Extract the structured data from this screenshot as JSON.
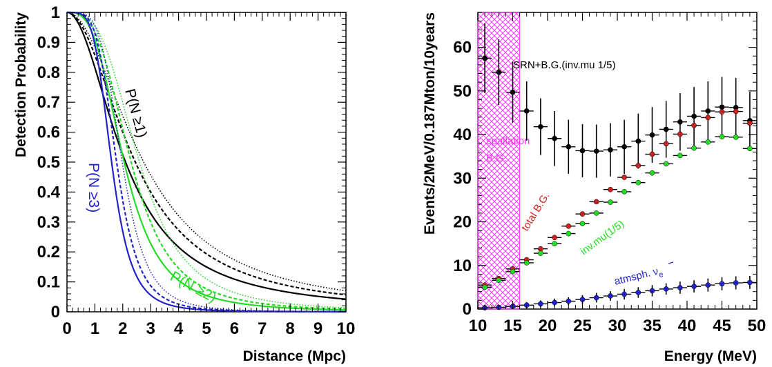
{
  "chart_data": [
    {
      "type": "line",
      "xlabel": "Distance (Mpc)",
      "ylabel": "Detection Probability",
      "xlim": [
        0,
        10
      ],
      "ylim": [
        0,
        1
      ],
      "xticks": [
        "0",
        "1",
        "2",
        "3",
        "4",
        "5",
        "6",
        "7",
        "8",
        "9",
        "10"
      ],
      "yticks": [
        "0",
        "0.1",
        "0.2",
        "0.3",
        "0.4",
        "0.5",
        "0.6",
        "0.7",
        "0.8",
        "0.9",
        "1"
      ],
      "grid": false,
      "annotations": [
        {
          "text": "P(N ≥1)",
          "color": "#000000"
        },
        {
          "text": "P(N ≥2)",
          "color": "#22dd22"
        },
        {
          "text": "P(N ≥3)",
          "color": "#2222cc"
        }
      ],
      "series": [
        {
          "color": "#000000",
          "style": "solid",
          "d0": 2.1,
          "p": 2.0,
          "x": [
            0,
            0.5,
            1,
            1.5,
            2,
            2.5,
            3,
            3.5,
            4,
            4.5,
            5,
            5.5,
            6,
            7,
            8,
            9,
            10
          ],
          "y": [
            1,
            1,
            0.99,
            0.86,
            0.66,
            0.48,
            0.35,
            0.26,
            0.2,
            0.16,
            0.13,
            0.11,
            0.09,
            0.07,
            0.06,
            0.05,
            0.04
          ]
        },
        {
          "color": "#000000",
          "style": "dashed",
          "d0": 2.45,
          "p": 2.0,
          "x": [
            0,
            0.5,
            1,
            1.5,
            2,
            2.5,
            3,
            3.5,
            4,
            4.5,
            5,
            5.5,
            6,
            7,
            8,
            9,
            10
          ],
          "y": [
            1,
            1,
            0.99,
            0.9,
            0.73,
            0.55,
            0.42,
            0.32,
            0.25,
            0.2,
            0.16,
            0.14,
            0.12,
            0.09,
            0.07,
            0.06,
            0.05
          ]
        },
        {
          "color": "#000000",
          "style": "dotted",
          "d0": 2.75,
          "p": 2.0,
          "x": [
            0,
            0.5,
            1,
            1.5,
            2,
            2.5,
            3,
            3.5,
            4,
            4.5,
            5,
            5.5,
            6,
            7,
            8,
            9,
            10
          ],
          "y": [
            1,
            1,
            0.99,
            0.92,
            0.79,
            0.62,
            0.48,
            0.38,
            0.3,
            0.24,
            0.2,
            0.17,
            0.14,
            0.11,
            0.09,
            0.07,
            0.06
          ]
        },
        {
          "color": "#22dd22",
          "style": "solid",
          "d0": 2.05,
          "p": 3.2,
          "x": [
            0,
            0.5,
            1,
            1.5,
            2,
            2.5,
            3,
            3.5,
            4,
            4.5,
            5,
            5.5,
            6,
            7,
            8,
            9,
            10
          ],
          "y": [
            1,
            1,
            0.99,
            0.73,
            0.46,
            0.27,
            0.16,
            0.1,
            0.07,
            0.05,
            0.03,
            0.02,
            0.02,
            0.01,
            0.01,
            0,
            0
          ]
        },
        {
          "color": "#22dd22",
          "style": "dashed",
          "d0": 2.3,
          "p": 3.2,
          "x": [
            0,
            0.5,
            1,
            1.5,
            2,
            2.5,
            3,
            3.5,
            4,
            4.5,
            5,
            5.5,
            6,
            7,
            8,
            9,
            10
          ],
          "y": [
            1,
            1,
            0.99,
            0.8,
            0.55,
            0.35,
            0.22,
            0.14,
            0.09,
            0.06,
            0.04,
            0.03,
            0.02,
            0.01,
            0.01,
            0.01,
            0
          ]
        },
        {
          "color": "#22dd22",
          "style": "dotted",
          "d0": 2.6,
          "p": 3.2,
          "x": [
            0,
            0.5,
            1,
            1.5,
            2,
            2.5,
            3,
            3.5,
            4,
            4.5,
            5,
            5.5,
            6,
            7,
            8,
            9,
            10
          ],
          "y": [
            1,
            1,
            0.99,
            0.86,
            0.65,
            0.45,
            0.3,
            0.2,
            0.13,
            0.09,
            0.06,
            0.04,
            0.03,
            0.02,
            0.01,
            0.01,
            0.01
          ]
        },
        {
          "color": "#2222cc",
          "style": "solid",
          "d0": 1.6,
          "p": 4.5,
          "x": [
            0,
            0.5,
            1,
            1.5,
            2,
            2.5,
            3,
            3.5,
            4,
            4.5,
            5,
            5.5,
            6,
            7,
            8,
            9,
            10
          ],
          "y": [
            1,
            1,
            0.9,
            0.56,
            0.2,
            0.06,
            0.02,
            0.01,
            0,
            0,
            0,
            0,
            0,
            0,
            0,
            0,
            0
          ]
        },
        {
          "color": "#2222cc",
          "style": "dashed",
          "d0": 1.78,
          "p": 4.5,
          "x": [
            0,
            0.5,
            1,
            1.5,
            2,
            2.5,
            3,
            3.5,
            4,
            4.5,
            5,
            5.5,
            6,
            7,
            8,
            9,
            10
          ],
          "y": [
            1,
            1,
            0.93,
            0.68,
            0.29,
            0.11,
            0.04,
            0.02,
            0.01,
            0,
            0,
            0,
            0,
            0,
            0,
            0,
            0
          ]
        },
        {
          "color": "#2222cc",
          "style": "dotted",
          "d0": 1.98,
          "p": 4.5,
          "x": [
            0,
            0.5,
            1,
            1.5,
            2,
            2.5,
            3,
            3.5,
            4,
            4.5,
            5,
            5.5,
            6,
            7,
            8,
            9,
            10
          ],
          "y": [
            1,
            1,
            0.96,
            0.78,
            0.42,
            0.18,
            0.07,
            0.03,
            0.01,
            0.01,
            0,
            0,
            0,
            0,
            0,
            0,
            0
          ]
        }
      ]
    },
    {
      "type": "scatter",
      "xlabel": "Energy (MeV)",
      "ylabel": "Events/2MeV/0.187Mton/10years",
      "xlim": [
        10,
        50
      ],
      "ylim": [
        0,
        68
      ],
      "xticks": [
        "10",
        "15",
        "20",
        "25",
        "30",
        "35",
        "40",
        "45",
        "50"
      ],
      "yticks": [
        "0",
        "10",
        "20",
        "30",
        "40",
        "50",
        "60"
      ],
      "grid": false,
      "shaded_region": {
        "x": [
          10,
          16
        ],
        "color": "#ff33ff",
        "label_line1": "spallation",
        "label_line2": "B.G."
      },
      "annotations": [
        {
          "text": "SRN+B.G.(inv.mu 1/5)",
          "color": "#000000"
        },
        {
          "text": "total B.G.",
          "color": "#dd2222"
        },
        {
          "text": "inv.mu(1/5)",
          "color": "#22dd22"
        },
        {
          "text": "atmsph. ν",
          "color": "#2222cc",
          "subscript": "e"
        }
      ],
      "x": [
        11,
        13,
        15,
        17,
        19,
        21,
        23,
        25,
        27,
        29,
        31,
        33,
        35,
        37,
        39,
        41,
        43,
        45,
        47,
        49
      ],
      "series": [
        {
          "color": "#000000",
          "values": [
            57.5,
            54.3,
            49.7,
            45.4,
            41.8,
            39.1,
            37.2,
            36.3,
            36.2,
            36.5,
            37.2,
            38.5,
            39.9,
            41.2,
            42.9,
            44.2,
            45.4,
            46.3,
            46.2,
            43.2
          ],
          "errors": [
            8.0,
            7.5,
            7.0,
            6.8,
            6.5,
            6.3,
            6.2,
            6.1,
            6.1,
            6.1,
            6.2,
            6.3,
            6.4,
            6.5,
            6.6,
            6.7,
            6.8,
            6.9,
            6.8,
            6.6
          ]
        },
        {
          "color": "#cc2222",
          "values": [
            5.5,
            7.0,
            9.2,
            11.3,
            13.8,
            16.4,
            19.0,
            21.8,
            24.6,
            27.4,
            30.2,
            32.9,
            35.5,
            37.9,
            40.1,
            42.1,
            43.9,
            45.2,
            45.3,
            42.6
          ]
        },
        {
          "color": "#22dd22",
          "values": [
            5.0,
            6.6,
            8.6,
            10.6,
            12.8,
            15.0,
            17.3,
            19.6,
            22.0,
            24.5,
            26.9,
            29.0,
            31.2,
            33.3,
            35.2,
            36.9,
            38.3,
            39.5,
            39.4,
            36.8
          ]
        },
        {
          "color": "#2222cc",
          "values": [
            0.3,
            0.4,
            0.6,
            0.9,
            1.2,
            1.5,
            1.8,
            2.2,
            2.6,
            3.0,
            3.4,
            3.8,
            4.2,
            4.6,
            4.9,
            5.2,
            5.5,
            5.8,
            6.0,
            6.1
          ],
          "errors": [
            0.4,
            0.5,
            0.6,
            0.7,
            0.8,
            0.9,
            0.9,
            1.0,
            1.1,
            1.1,
            1.2,
            1.2,
            1.3,
            1.3,
            1.4,
            1.4,
            1.5,
            1.5,
            1.5,
            1.5
          ]
        }
      ]
    }
  ]
}
